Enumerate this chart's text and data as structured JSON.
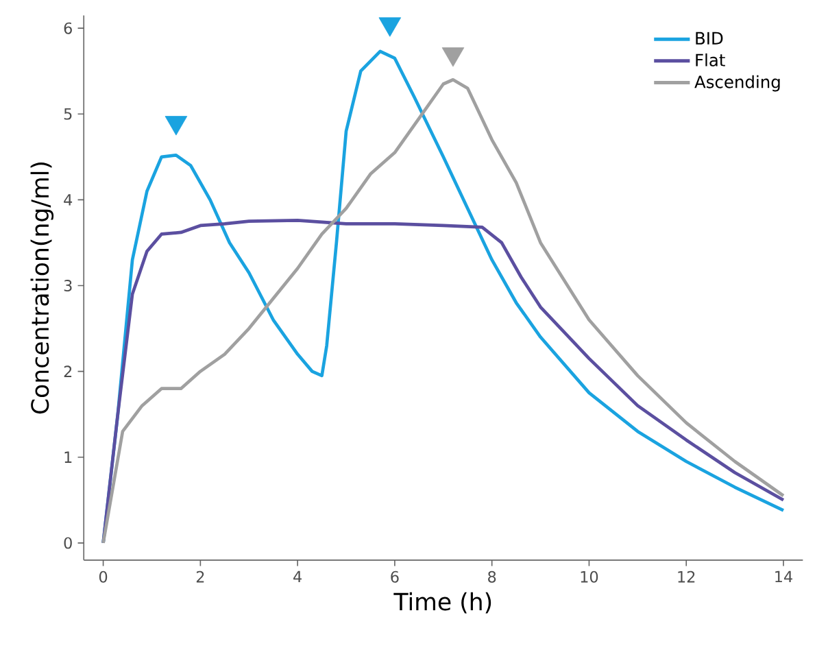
{
  "chart_data": {
    "type": "line",
    "xlabel": "Time (h)",
    "ylabel": "Concentration(ng/ml)",
    "xlim": [
      -0.4,
      14.4
    ],
    "ylim": [
      -0.2,
      6.15
    ],
    "xticks": [
      0,
      2,
      4,
      6,
      8,
      10,
      12,
      14
    ],
    "yticks": [
      0,
      1,
      2,
      3,
      4,
      5,
      6
    ],
    "grid": false,
    "legend": "top right",
    "marker": "none",
    "line_style": "solid",
    "series": [
      {
        "name": "BID",
        "color": "#1aa3e0",
        "x": [
          0,
          0.3,
          0.6,
          0.9,
          1.2,
          1.5,
          1.8,
          2.2,
          2.6,
          3,
          3.5,
          4,
          4.3,
          4.5,
          4.6,
          4.8,
          5,
          5.3,
          5.7,
          6,
          6.4,
          7,
          7.5,
          8,
          8.5,
          9,
          10,
          11,
          12,
          13,
          14
        ],
        "values": [
          0,
          1.5,
          3.3,
          4.1,
          4.5,
          4.52,
          4.4,
          4.0,
          3.5,
          3.15,
          2.6,
          2.2,
          2.0,
          1.95,
          2.3,
          3.5,
          4.8,
          5.5,
          5.73,
          5.65,
          5.2,
          4.5,
          3.9,
          3.3,
          2.8,
          2.4,
          1.75,
          1.3,
          0.95,
          0.65,
          0.38
        ]
      },
      {
        "name": "Flat",
        "color": "#5b4fa0",
        "x": [
          0,
          0.3,
          0.6,
          0.9,
          1.2,
          1.6,
          2,
          2.5,
          3,
          4,
          5,
          6,
          7,
          7.8,
          8.2,
          8.6,
          9,
          10,
          11,
          12,
          13,
          14
        ],
        "values": [
          0,
          1.5,
          2.9,
          3.4,
          3.6,
          3.62,
          3.7,
          3.72,
          3.75,
          3.76,
          3.72,
          3.72,
          3.7,
          3.68,
          3.5,
          3.1,
          2.75,
          2.15,
          1.6,
          1.2,
          0.82,
          0.5
        ]
      },
      {
        "name": "Ascending",
        "color": "#a0a0a0",
        "x": [
          0,
          0.4,
          0.8,
          1.2,
          1.6,
          2,
          2.5,
          3,
          3.5,
          4,
          4.5,
          5,
          5.5,
          6,
          6.5,
          7,
          7.2,
          7.5,
          8,
          8.5,
          9,
          10,
          11,
          12,
          13,
          14
        ],
        "values": [
          0,
          1.3,
          1.6,
          1.8,
          1.8,
          2.0,
          2.2,
          2.5,
          2.85,
          3.2,
          3.6,
          3.9,
          4.3,
          4.55,
          4.95,
          5.35,
          5.4,
          5.3,
          4.7,
          4.2,
          3.5,
          2.6,
          1.95,
          1.4,
          0.95,
          0.55
        ]
      },
      {
        "type": "scatter",
        "marker": "triangle",
        "color": "#1aa3e0",
        "x": [
          1.5,
          5.9
        ],
        "values": [
          4.9,
          6.05
        ]
      },
      {
        "type": "scatter",
        "marker": "triangle",
        "color": "#a0a0a0",
        "x": [
          7.2
        ],
        "values": [
          5.7
        ]
      }
    ]
  }
}
